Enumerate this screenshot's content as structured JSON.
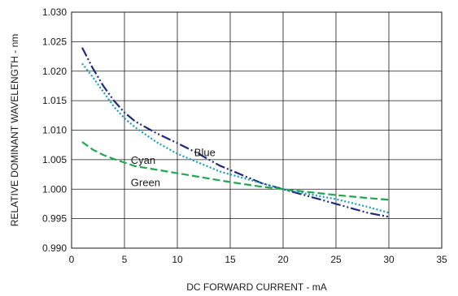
{
  "chart_data": {
    "type": "line",
    "xlabel": "DC FORWARD CURRENT - mA",
    "ylabel": "RELATIVE DOMINANT WAVELENGTH - nm",
    "xlim": [
      0,
      35
    ],
    "ylim": [
      0.99,
      1.03
    ],
    "x_ticks": [
      "0",
      "5",
      "10",
      "15",
      "20",
      "25",
      "30",
      "35"
    ],
    "y_ticks": [
      "0.990",
      "0.995",
      "1.000",
      "1.005",
      "1.010",
      "1.015",
      "1.020",
      "1.025",
      "1.030"
    ],
    "grid": true,
    "series": [
      {
        "name": "Blue",
        "color": "#1f2a7a",
        "style": "dash-dot-dot",
        "x": [
          1,
          2,
          3,
          4,
          5,
          6,
          8,
          10,
          12,
          14,
          16,
          18,
          20,
          22,
          25,
          28,
          30
        ],
        "y": [
          1.024,
          1.0205,
          1.0175,
          1.015,
          1.013,
          1.0115,
          1.0095,
          1.0078,
          1.006,
          1.004,
          1.0025,
          1.001,
          1.0,
          0.999,
          0.9975,
          0.996,
          0.9953
        ]
      },
      {
        "name": "Cyan",
        "color": "#1a9bc0",
        "style": "dotted",
        "x": [
          1,
          2,
          3,
          4,
          5,
          6,
          8,
          10,
          12,
          14,
          16,
          18,
          20,
          22,
          25,
          28,
          30
        ],
        "y": [
          1.0213,
          1.019,
          1.0165,
          1.014,
          1.012,
          1.0105,
          1.008,
          1.006,
          1.0045,
          1.003,
          1.002,
          1.001,
          1.0,
          0.9993,
          0.9983,
          0.997,
          0.996
        ]
      },
      {
        "name": "Green",
        "color": "#1fa84f",
        "style": "dashed",
        "x": [
          1,
          2,
          3,
          4,
          5,
          6,
          8,
          10,
          12,
          15,
          18,
          20,
          22,
          25,
          28,
          30
        ],
        "y": [
          1.008,
          1.0067,
          1.0058,
          1.0051,
          1.0045,
          1.0039,
          1.0033,
          1.0027,
          1.0021,
          1.0012,
          1.0004,
          1.0,
          0.9996,
          0.999,
          0.9985,
          0.9982
        ]
      }
    ]
  }
}
